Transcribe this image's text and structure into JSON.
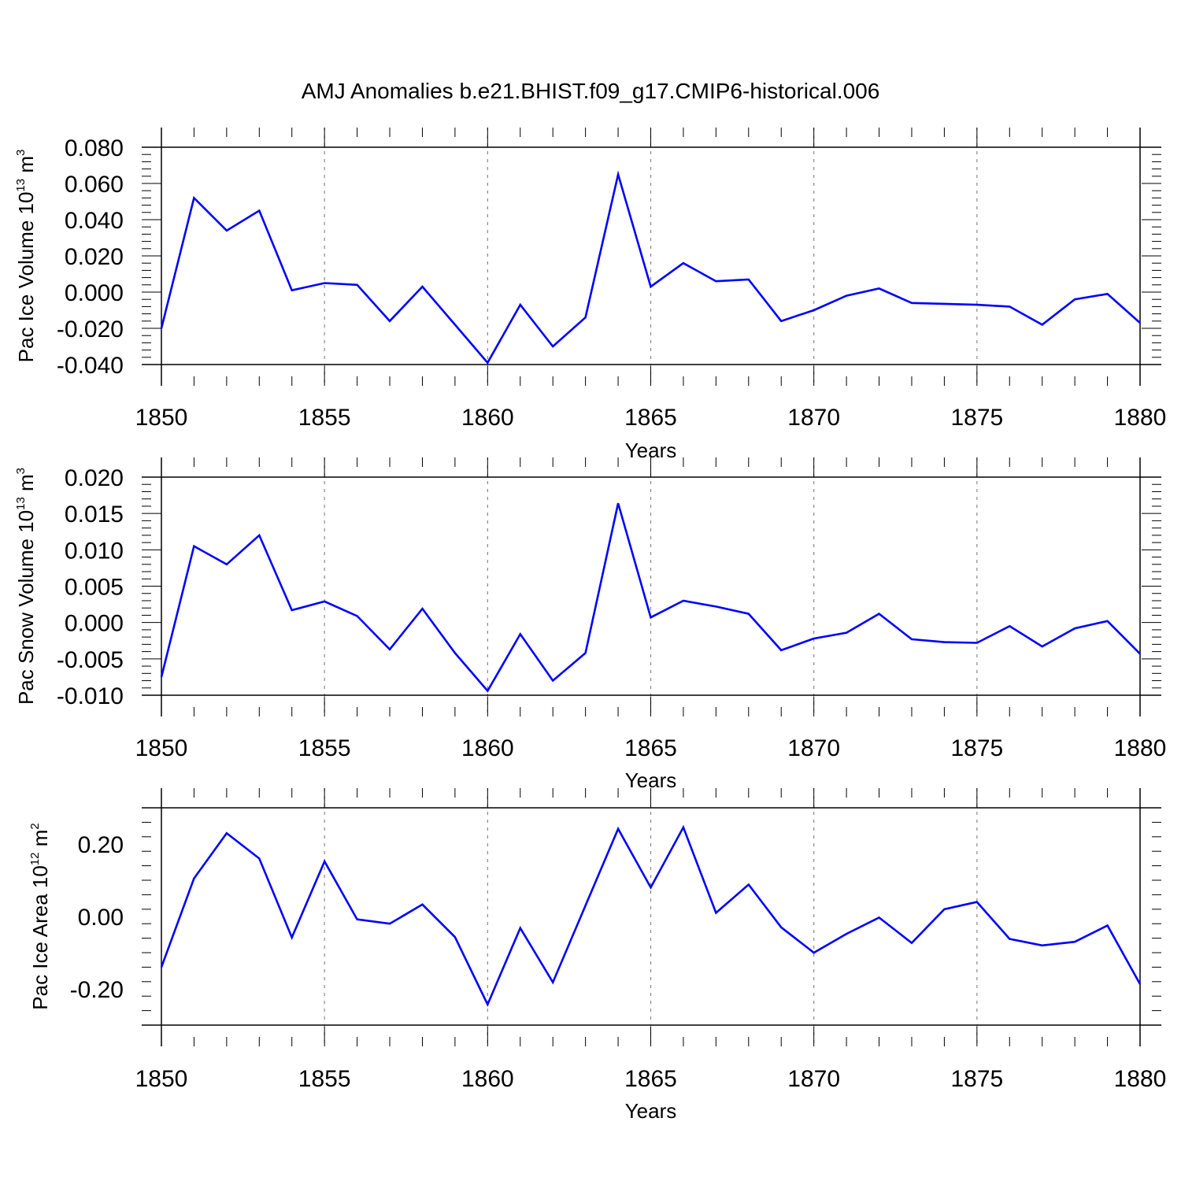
{
  "figure_title": "AMJ Anomalies b.e21.BHIST.f09_g17.CMIP6-historical.006",
  "line_color": "#0000ff",
  "chart_data": [
    {
      "type": "line",
      "title": "",
      "xlabel": "Years",
      "ylabel": {
        "prefix": "Pac Ice Volume 10",
        "exponent": "13",
        "unit": " m",
        "unit_exponent": "3"
      },
      "xlim": [
        1850,
        1880
      ],
      "ylim": [
        -0.04,
        0.08
      ],
      "x_ticks": [
        "1850",
        "1855",
        "1860",
        "1865",
        "1870",
        "1875",
        "1880"
      ],
      "y_ticks": [
        {
          "value": 0.08,
          "label": "0.080"
        },
        {
          "value": 0.06,
          "label": "0.060"
        },
        {
          "value": 0.04,
          "label": "0.040"
        },
        {
          "value": 0.02,
          "label": "0.020"
        },
        {
          "value": 0.0,
          "label": "0.000"
        },
        {
          "value": -0.02,
          "label": "-0.020"
        },
        {
          "value": -0.04,
          "label": "-0.040"
        }
      ],
      "grid": "vertical dashed at labeled years",
      "x": [
        1850,
        1851,
        1852,
        1853,
        1854,
        1855,
        1856,
        1857,
        1858,
        1859,
        1860,
        1861,
        1862,
        1863,
        1864,
        1865,
        1866,
        1867,
        1868,
        1869,
        1870,
        1871,
        1872,
        1873,
        1874,
        1875,
        1876,
        1877,
        1878,
        1879,
        1880
      ],
      "series": [
        {
          "values": [
            -0.02,
            0.052,
            0.034,
            0.045,
            0.001,
            0.005,
            0.004,
            -0.016,
            0.003,
            -0.018,
            -0.039,
            -0.007,
            -0.03,
            -0.014,
            0.065,
            0.003,
            0.016,
            0.006,
            0.007,
            -0.016,
            -0.01,
            -0.002,
            0.002,
            -0.006,
            -0.0065,
            -0.007,
            -0.008,
            -0.018,
            -0.004,
            -0.001,
            -0.017
          ]
        }
      ]
    },
    {
      "type": "line",
      "title": "",
      "xlabel": "Years",
      "ylabel": {
        "prefix": "Pac Snow Volume 10",
        "exponent": "13",
        "unit": " m",
        "unit_exponent": "3"
      },
      "xlim": [
        1850,
        1880
      ],
      "ylim": [
        -0.01,
        0.02
      ],
      "x_ticks": [
        "1850",
        "1855",
        "1860",
        "1865",
        "1870",
        "1875",
        "1880"
      ],
      "y_ticks": [
        {
          "value": 0.02,
          "label": "0.020"
        },
        {
          "value": 0.015,
          "label": "0.015"
        },
        {
          "value": 0.01,
          "label": "0.010"
        },
        {
          "value": 0.005,
          "label": "0.005"
        },
        {
          "value": 0.0,
          "label": "0.000"
        },
        {
          "value": -0.005,
          "label": "-0.005"
        },
        {
          "value": -0.01,
          "label": "-0.010"
        }
      ],
      "grid": "vertical dashed at labeled years",
      "x": [
        1850,
        1851,
        1852,
        1853,
        1854,
        1855,
        1856,
        1857,
        1858,
        1859,
        1860,
        1861,
        1862,
        1863,
        1864,
        1865,
        1866,
        1867,
        1868,
        1869,
        1870,
        1871,
        1872,
        1873,
        1874,
        1875,
        1876,
        1877,
        1878,
        1879,
        1880
      ],
      "series": [
        {
          "values": [
            -0.0075,
            0.0105,
            0.008,
            0.012,
            0.0017,
            0.0029,
            0.0009,
            -0.0037,
            0.0019,
            -0.0042,
            -0.0094,
            -0.0016,
            -0.008,
            -0.0042,
            0.0164,
            0.0007,
            0.003,
            0.0022,
            0.0012,
            -0.0038,
            -0.0022,
            -0.0014,
            0.0012,
            -0.0023,
            -0.0027,
            -0.0028,
            -0.0005,
            -0.0033,
            -0.0008,
            0.0002,
            -0.0043
          ]
        }
      ]
    },
    {
      "type": "line",
      "title": "",
      "xlabel": "Years",
      "ylabel": {
        "prefix": "Pac Ice Area 10",
        "exponent": "12",
        "unit": " m",
        "unit_exponent": "2"
      },
      "xlim": [
        1850,
        1880
      ],
      "ylim": [
        -0.3,
        0.3
      ],
      "x_ticks": [
        "1850",
        "1855",
        "1860",
        "1865",
        "1870",
        "1875",
        "1880"
      ],
      "y_ticks": [
        {
          "value": 0.2,
          "label": "0.20"
        },
        {
          "value": 0.0,
          "label": "0.00"
        },
        {
          "value": -0.2,
          "label": "-0.20"
        }
      ],
      "grid": "vertical dashed at labeled years",
      "x": [
        1850,
        1851,
        1852,
        1853,
        1854,
        1855,
        1856,
        1857,
        1858,
        1859,
        1860,
        1861,
        1862,
        1863,
        1864,
        1865,
        1866,
        1867,
        1868,
        1869,
        1870,
        1871,
        1872,
        1873,
        1874,
        1875,
        1876,
        1877,
        1878,
        1879,
        1880
      ],
      "series": [
        {
          "values": [
            -0.14,
            0.105,
            0.23,
            0.16,
            -0.058,
            0.152,
            -0.008,
            -0.02,
            0.033,
            -0.057,
            -0.243,
            -0.032,
            -0.182,
            0.03,
            0.242,
            0.08,
            0.246,
            0.01,
            0.088,
            -0.03,
            -0.1,
            -0.048,
            -0.003,
            -0.073,
            0.02,
            0.04,
            -0.062,
            -0.08,
            -0.07,
            -0.025,
            -0.187
          ]
        }
      ]
    }
  ]
}
